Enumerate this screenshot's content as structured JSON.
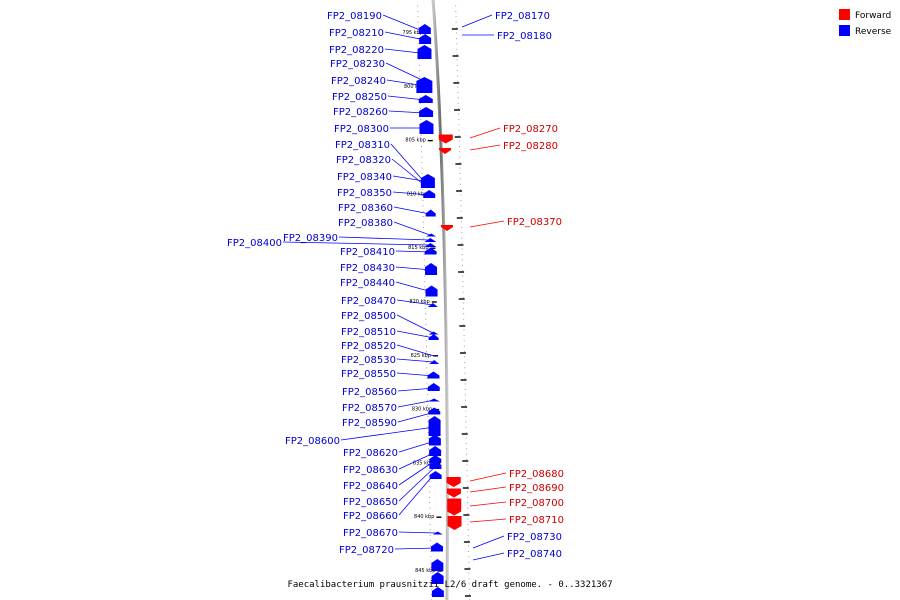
{
  "caption": "Faecalibacterium prausnitzii L2/6 draft genome. - 0..3321367",
  "legend": [
    {
      "label": "Forward",
      "color": "#ff0000"
    },
    {
      "label": "Reverse",
      "color": "#0000ff"
    }
  ],
  "colors": {
    "forward": "#ff0000",
    "reverse": "#0000ff",
    "forward_label": "#cc0000",
    "reverse_label": "#0000cc",
    "backbone": "#7f7f7f"
  },
  "scale_labels": [
    "795 kbp",
    "800 kbp",
    "805 kbp",
    "810 kbp",
    "815 kbp",
    "820 kbp",
    "825 kbp",
    "830 kbp",
    "835 kbp",
    "840 kbp",
    "845 kbp"
  ],
  "genes": [
    {
      "name": "FP2_08170",
      "strand": "reverse",
      "side": "right"
    },
    {
      "name": "FP2_08180",
      "strand": "reverse",
      "side": "right"
    },
    {
      "name": "FP2_08190",
      "strand": "reverse",
      "side": "left"
    },
    {
      "name": "FP2_08210",
      "strand": "reverse",
      "side": "left"
    },
    {
      "name": "FP2_08220",
      "strand": "reverse",
      "side": "left"
    },
    {
      "name": "FP2_08230",
      "strand": "reverse",
      "side": "left"
    },
    {
      "name": "FP2_08240",
      "strand": "reverse",
      "side": "left"
    },
    {
      "name": "FP2_08250",
      "strand": "reverse",
      "side": "left"
    },
    {
      "name": "FP2_08260",
      "strand": "reverse",
      "side": "left"
    },
    {
      "name": "FP2_08270",
      "strand": "forward",
      "side": "right"
    },
    {
      "name": "FP2_08280",
      "strand": "forward",
      "side": "right"
    },
    {
      "name": "FP2_08300",
      "strand": "reverse",
      "side": "left"
    },
    {
      "name": "FP2_08310",
      "strand": "reverse",
      "side": "left"
    },
    {
      "name": "FP2_08320",
      "strand": "reverse",
      "side": "left"
    },
    {
      "name": "FP2_08340",
      "strand": "reverse",
      "side": "left"
    },
    {
      "name": "FP2_08350",
      "strand": "reverse",
      "side": "left"
    },
    {
      "name": "FP2_08360",
      "strand": "reverse",
      "side": "left"
    },
    {
      "name": "FP2_08370",
      "strand": "forward",
      "side": "right"
    },
    {
      "name": "FP2_08380",
      "strand": "reverse",
      "side": "left"
    },
    {
      "name": "FP2_08390",
      "strand": "reverse",
      "side": "left"
    },
    {
      "name": "FP2_08400",
      "strand": "reverse",
      "side": "left"
    },
    {
      "name": "FP2_08410",
      "strand": "reverse",
      "side": "left"
    },
    {
      "name": "FP2_08430",
      "strand": "reverse",
      "side": "left"
    },
    {
      "name": "FP2_08440",
      "strand": "reverse",
      "side": "left"
    },
    {
      "name": "FP2_08470",
      "strand": "reverse",
      "side": "left"
    },
    {
      "name": "FP2_08500",
      "strand": "reverse",
      "side": "left"
    },
    {
      "name": "FP2_08510",
      "strand": "reverse",
      "side": "left"
    },
    {
      "name": "FP2_08520",
      "strand": "reverse",
      "side": "left"
    },
    {
      "name": "FP2_08530",
      "strand": "reverse",
      "side": "left"
    },
    {
      "name": "FP2_08550",
      "strand": "reverse",
      "side": "left"
    },
    {
      "name": "FP2_08560",
      "strand": "reverse",
      "side": "left"
    },
    {
      "name": "FP2_08570",
      "strand": "reverse",
      "side": "left"
    },
    {
      "name": "FP2_08590",
      "strand": "reverse",
      "side": "left"
    },
    {
      "name": "FP2_08600",
      "strand": "reverse",
      "side": "left"
    },
    {
      "name": "FP2_08620",
      "strand": "reverse",
      "side": "left"
    },
    {
      "name": "FP2_08630",
      "strand": "reverse",
      "side": "left"
    },
    {
      "name": "FP2_08640",
      "strand": "reverse",
      "side": "left"
    },
    {
      "name": "FP2_08650",
      "strand": "reverse",
      "side": "left"
    },
    {
      "name": "FP2_08660",
      "strand": "reverse",
      "side": "left"
    },
    {
      "name": "FP2_08670",
      "strand": "reverse",
      "side": "left"
    },
    {
      "name": "FP2_08680",
      "strand": "forward",
      "side": "right"
    },
    {
      "name": "FP2_08690",
      "strand": "forward",
      "side": "right"
    },
    {
      "name": "FP2_08700",
      "strand": "forward",
      "side": "right"
    },
    {
      "name": "FP2_08710",
      "strand": "forward",
      "side": "right"
    },
    {
      "name": "FP2_08720",
      "strand": "reverse",
      "side": "left"
    },
    {
      "name": "FP2_08730",
      "strand": "reverse",
      "side": "right"
    },
    {
      "name": "FP2_08740",
      "strand": "reverse",
      "side": "right"
    }
  ]
}
